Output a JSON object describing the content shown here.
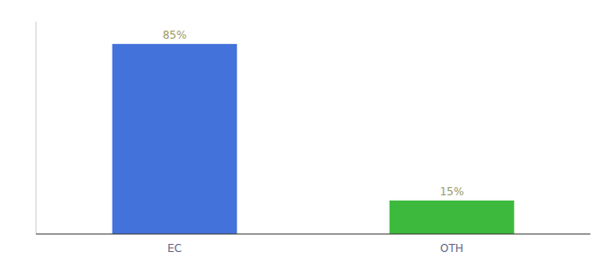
{
  "chart_data": {
    "type": "bar",
    "categories": [
      "EC",
      "OTH"
    ],
    "values": [
      85,
      15
    ],
    "colors": [
      "#4472db",
      "#3dba3d"
    ],
    "ylim": [
      0,
      95
    ],
    "data_labels": true,
    "value_labels": [
      "85%",
      "15%"
    ],
    "tick_labels": "x"
  }
}
